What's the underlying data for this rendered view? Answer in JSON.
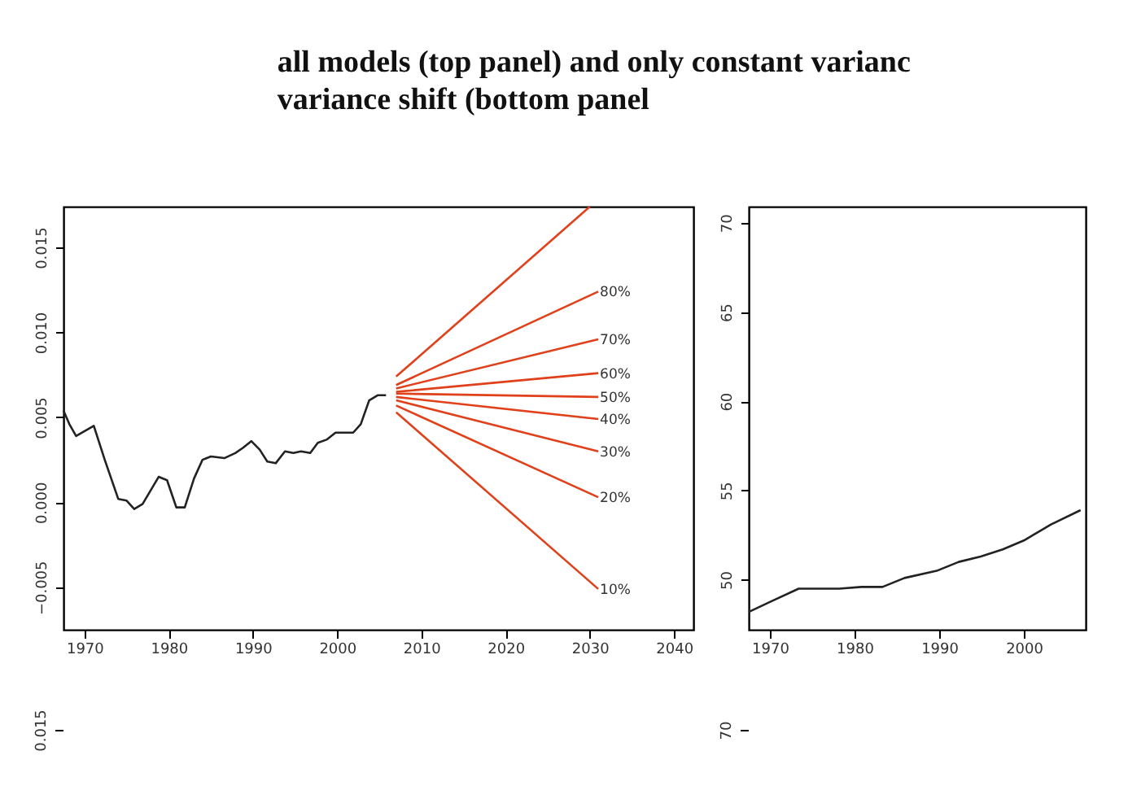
{
  "chart_data": [
    {
      "type": "line",
      "title": [
        "all models (top panel) and only constant varianc",
        "variance shift (bottom panel"
      ],
      "xlim": [
        1967.5,
        2042.3
      ],
      "xticks": [
        1970,
        1980,
        1990,
        2000,
        2010,
        2020,
        2030,
        2040
      ],
      "ylim": [
        -0.0075,
        0.0174
      ],
      "yticks": [
        {
          "value": -0.005,
          "label": "−0.005"
        },
        {
          "value": 0,
          "label": "0.000"
        },
        {
          "value": 0.005,
          "label": "0.005"
        },
        {
          "value": 0.01,
          "label": "0.010"
        },
        {
          "value": 0.015,
          "label": "0.015"
        }
      ],
      "series": [
        {
          "color": "#222222",
          "x": [
            1967.5,
            1968.2,
            1969.0,
            1971.1,
            1972.4,
            1974.0,
            1975.0,
            1975.9,
            1976.9,
            1978.8,
            1979.8,
            1980.9,
            1981.9,
            1983.0,
            1984.0,
            1985.0,
            1986.6,
            1987.9,
            1988.8,
            1989.8,
            1990.8,
            1991.7,
            1992.7,
            1993.8,
            1994.8,
            1995.7,
            1996.8,
            1997.7,
            1998.8,
            1999.8,
            2000.8,
            2001.9,
            2002.8,
            2003.8,
            2004.8,
            2005.8
          ],
          "values": [
            0.0054,
            0.0046,
            0.0039,
            0.0045,
            0.0025,
            0.0002,
            0.0001,
            -0.0004,
            -0.0001,
            0.0015,
            0.0013,
            -0.0003,
            -0.0003,
            0.0014,
            0.0025,
            0.0027,
            0.0026,
            0.0029,
            0.0032,
            0.0036,
            0.0031,
            0.0024,
            0.0023,
            0.003,
            0.0029,
            0.003,
            0.0029,
            0.0035,
            0.0037,
            0.0041,
            0.0041,
            0.0041,
            0.0046,
            0.006,
            0.0063,
            0.0063
          ]
        },
        {
          "color": "#e0401a",
          "x": [
            2007,
            2030
          ],
          "values": [
            0.0074,
            0.0174
          ]
        },
        {
          "name": "80%",
          "color": "#e0401a",
          "x": [
            2007,
            2031
          ],
          "values": [
            0.0069,
            0.0124
          ]
        },
        {
          "name": "70%",
          "color": "#e0401a",
          "x": [
            2007,
            2031
          ],
          "values": [
            0.0067,
            0.0096
          ]
        },
        {
          "name": "60%",
          "color": "#e0401a",
          "x": [
            2007,
            2031
          ],
          "values": [
            0.0065,
            0.0076
          ]
        },
        {
          "name": "50%",
          "color": "#e0401a",
          "x": [
            2007,
            2031
          ],
          "values": [
            0.0064,
            0.0062
          ]
        },
        {
          "name": "40%",
          "color": "#e0401a",
          "x": [
            2007,
            2031
          ],
          "values": [
            0.0062,
            0.0049
          ]
        },
        {
          "name": "30%",
          "color": "#e0401a",
          "x": [
            2007,
            2031
          ],
          "values": [
            0.006,
            0.003
          ]
        },
        {
          "name": "20%",
          "color": "#e0401a",
          "x": [
            2007,
            2031
          ],
          "values": [
            0.0057,
            0.0003
          ]
        },
        {
          "name": "10%",
          "color": "#e0401a",
          "x": [
            2007,
            2031
          ],
          "values": [
            0.0053,
            -0.0051
          ]
        }
      ]
    },
    {
      "type": "line",
      "xlim": [
        1967.5,
        2007.3
      ],
      "xticks": [
        1970,
        1980,
        1990,
        2000
      ],
      "ylim": [
        47.2,
        70.9
      ],
      "yticks": [
        50,
        55,
        60,
        65,
        70
      ],
      "series": [
        {
          "color": "#222222",
          "x": [
            1967.5,
            1970.2,
            1973.4,
            1975.3,
            1978.2,
            1980.8,
            1983.3,
            1985.9,
            1989.7,
            1992.3,
            1994.9,
            1997.5,
            2000,
            2003.2,
            2006.7
          ],
          "values": [
            48.2,
            48.8,
            49.5,
            49.5,
            49.5,
            49.6,
            49.6,
            50.1,
            50.5,
            51.0,
            51.3,
            51.7,
            52.2,
            53.1,
            53.9
          ]
        }
      ]
    },
    {
      "type": "other",
      "annotations": [
        "0.015"
      ]
    },
    {
      "type": "other",
      "annotations": [
        "70"
      ]
    }
  ]
}
